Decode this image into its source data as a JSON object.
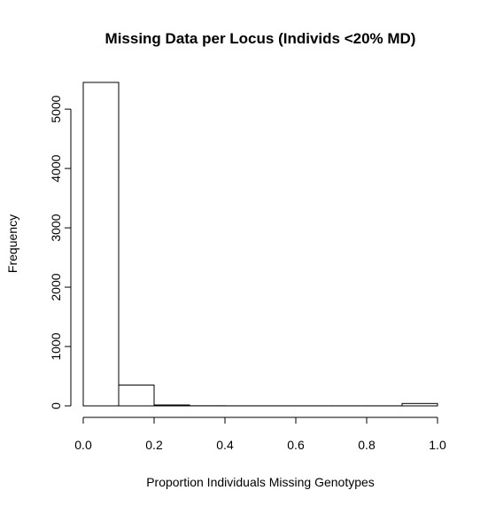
{
  "chart_data": {
    "type": "bar",
    "title": "Missing Data per Locus (Individs <20% MD)",
    "xlabel": "Proportion Individuals Missing Genotypes",
    "ylabel": "Frequency",
    "xlim": [
      0,
      1
    ],
    "ylim": [
      0,
      5450
    ],
    "x_ticks": [
      "0.0",
      "0.2",
      "0.4",
      "0.6",
      "0.8",
      "1.0"
    ],
    "x_tick_values": [
      0,
      0.2,
      0.4,
      0.6,
      0.8,
      1.0
    ],
    "y_ticks": [
      "0",
      "1000",
      "2000",
      "3000",
      "4000",
      "5000"
    ],
    "y_tick_values": [
      0,
      1000,
      2000,
      3000,
      4000,
      5000
    ],
    "bins": [
      {
        "start": 0.0,
        "end": 0.1,
        "value": 5450
      },
      {
        "start": 0.1,
        "end": 0.2,
        "value": 350
      },
      {
        "start": 0.2,
        "end": 0.3,
        "value": 15
      },
      {
        "start": 0.3,
        "end": 0.4,
        "value": 2
      },
      {
        "start": 0.4,
        "end": 0.5,
        "value": 1
      },
      {
        "start": 0.5,
        "end": 0.6,
        "value": 1
      },
      {
        "start": 0.6,
        "end": 0.7,
        "value": 1
      },
      {
        "start": 0.7,
        "end": 0.8,
        "value": 1
      },
      {
        "start": 0.8,
        "end": 0.9,
        "value": 1
      },
      {
        "start": 0.9,
        "end": 1.0,
        "value": 40
      }
    ],
    "bar_fill": "#ffffff",
    "bar_stroke": "#000000",
    "grid": false
  }
}
